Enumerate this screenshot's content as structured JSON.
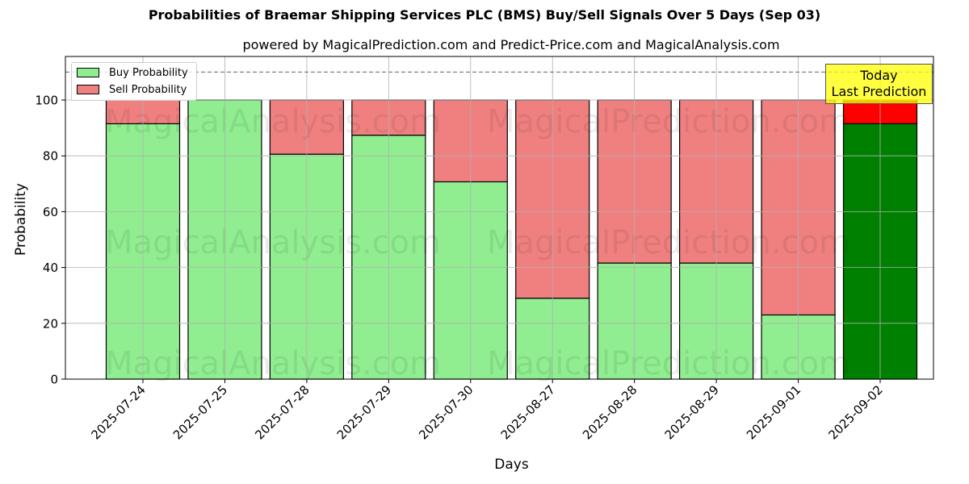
{
  "header": {
    "title": "Probabilities of Braemar Shipping Services PLC (BMS) Buy/Sell Signals Over 5 Days (Sep 03)",
    "subtitle": "powered by MagicalPrediction.com and Predict-Price.com and MagicalAnalysis.com"
  },
  "legend": {
    "buy_label": "Buy Probability",
    "sell_label": "Sell Probability"
  },
  "annotation": {
    "line1": "Today",
    "line2": "Last Prediction"
  },
  "watermarks": [
    "MagicalAnalysis.com",
    "MagicalPrediction.com"
  ],
  "colors": {
    "buy": "#90ee90",
    "sell": "#f08080",
    "buy_today": "#008000",
    "sell_today": "#ff0000",
    "annotation_bg": "#ffff00",
    "grid": "#b0b0b0"
  },
  "chart_data": {
    "type": "bar",
    "stacked": true,
    "title": "Probabilities of Braemar Shipping Services PLC (BMS) Buy/Sell Signals Over 5 Days (Sep 03)",
    "subtitle": "powered by MagicalPrediction.com and Predict-Price.com and MagicalAnalysis.com",
    "xlabel": "Days",
    "ylabel": "Probability",
    "ylim": [
      0,
      115
    ],
    "yticks": [
      0,
      20,
      40,
      60,
      80,
      100
    ],
    "grid": true,
    "legend_position": "upper left",
    "reference_line": {
      "y": 110,
      "style": "dashed"
    },
    "categories": [
      "2025-07-24",
      "2025-07-25",
      "2025-07-28",
      "2025-07-29",
      "2025-07-30",
      "2025-08-27",
      "2025-08-28",
      "2025-08-29",
      "2025-09-01",
      "2025-09-02"
    ],
    "series": [
      {
        "name": "Buy Probability",
        "values": [
          91.5,
          100,
          80.6,
          87.4,
          70.7,
          29.0,
          41.6,
          41.6,
          23.0,
          91.5
        ]
      },
      {
        "name": "Sell Probability",
        "values": [
          8.5,
          0,
          19.4,
          12.6,
          29.3,
          71.0,
          58.4,
          58.4,
          77.0,
          8.5
        ]
      }
    ],
    "highlight": {
      "index": 9,
      "label": "Today\nLast Prediction"
    }
  }
}
